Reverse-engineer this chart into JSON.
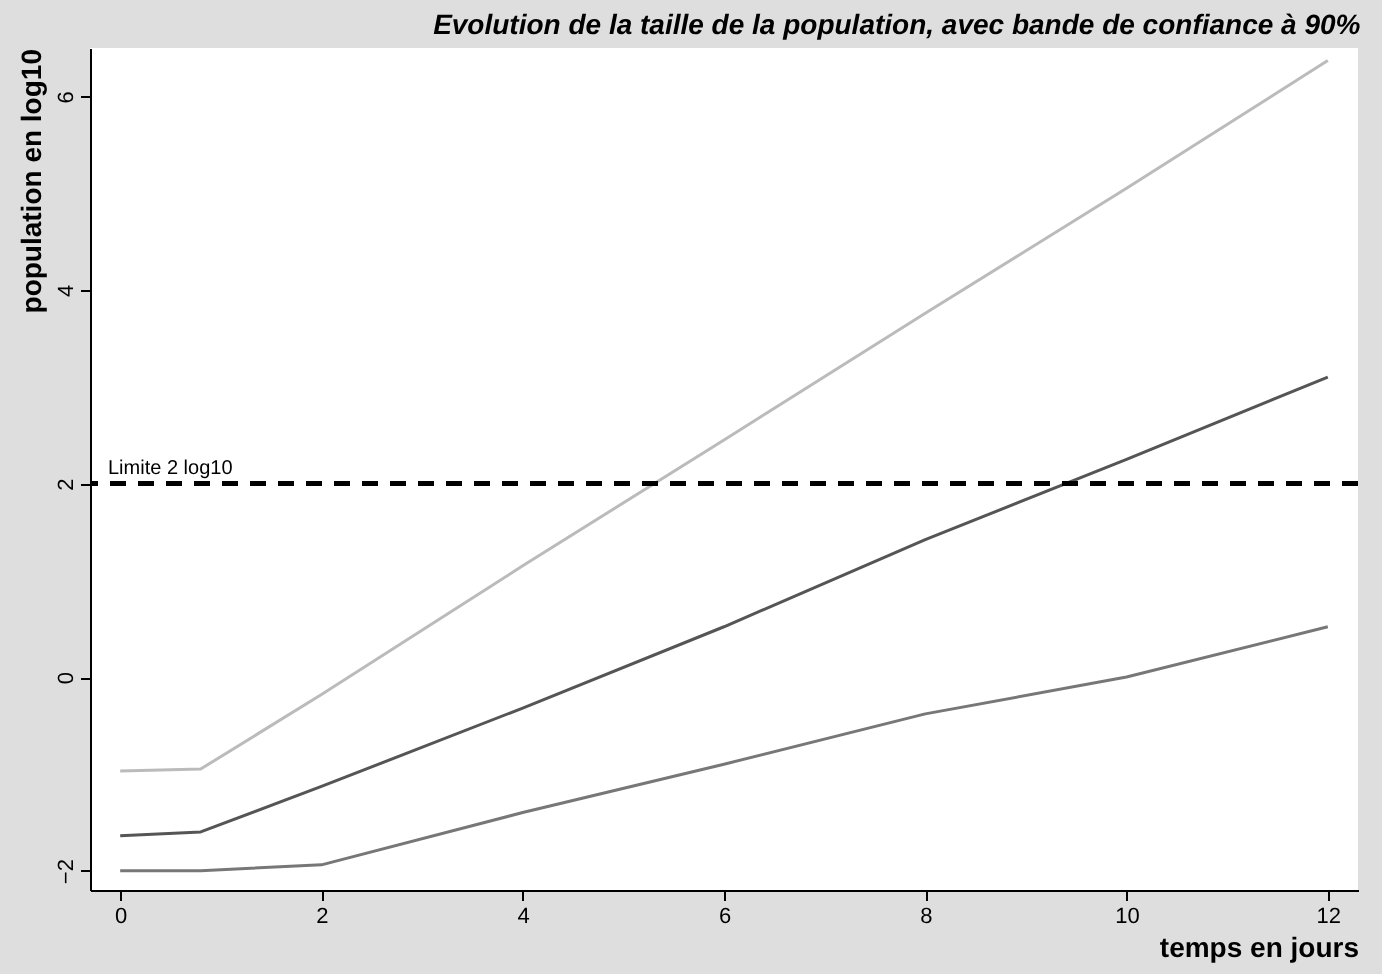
{
  "chart_data": {
    "type": "line",
    "title": "Evolution de la taille de la population, avec bande de confiance à 90%",
    "xlabel": "temps en jours",
    "ylabel": "population en log10",
    "x": [
      0,
      0.8,
      2,
      4,
      6,
      8,
      10,
      12
    ],
    "series": [
      {
        "color": "#bbbbbb",
        "values": [
          -0.97,
          -0.95,
          -0.18,
          1.15,
          2.45,
          3.76,
          5.05,
          6.37
        ]
      },
      {
        "color": "#555555",
        "values": [
          -1.64,
          -1.6,
          -1.13,
          -0.32,
          0.52,
          1.42,
          2.25,
          3.1
        ]
      },
      {
        "color": "#777777",
        "values": [
          -2.0,
          -2.0,
          -1.94,
          -1.4,
          -0.9,
          -0.38,
          0.0,
          0.52
        ]
      }
    ],
    "xlim": [
      -0.3,
      12.3
    ],
    "ylim": [
      -2.2,
      6.5
    ],
    "xticks": [
      0,
      2,
      4,
      6,
      8,
      10,
      12
    ],
    "yticks": [
      -2,
      0,
      2,
      4,
      6
    ],
    "ref_lines": [
      {
        "axis": "y",
        "value": 2,
        "label": "Limite 2 log10",
        "color": "#000000",
        "line_style": "dashed"
      }
    ],
    "grid": false,
    "marker": "none",
    "line_style": "solid"
  }
}
